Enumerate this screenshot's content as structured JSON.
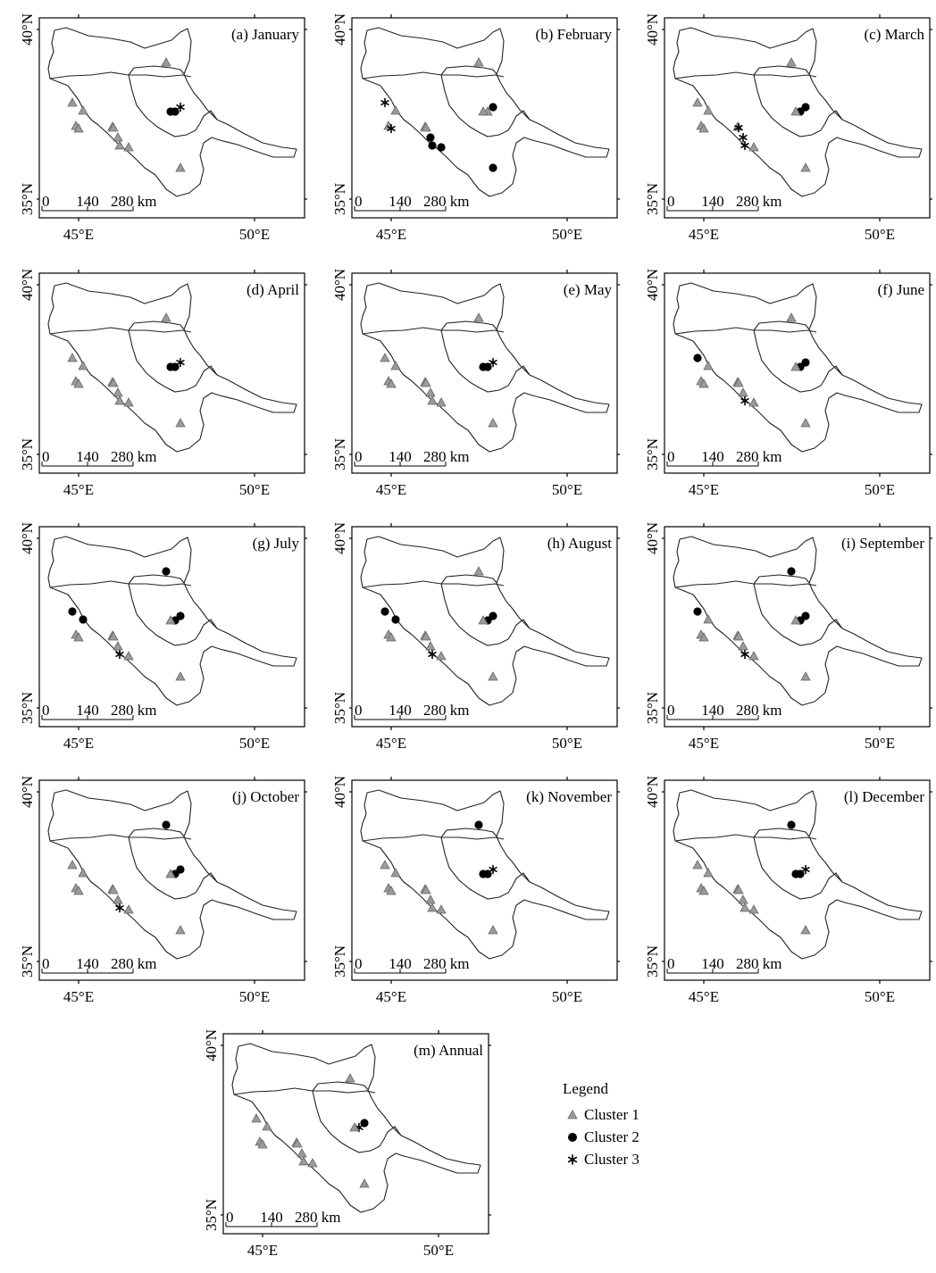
{
  "axis_labels": {
    "lat_top": "40°N",
    "lat_bottom": "35°N",
    "lon_left": "45°E",
    "lon_right": "50°E"
  },
  "scale_bar": {
    "labels": [
      "0",
      "140",
      "280 km"
    ]
  },
  "legend": {
    "title": "Legend",
    "items": [
      {
        "key": "c1",
        "label": "Cluster 1",
        "symbol": "triangle",
        "color": "#9b9b9b"
      },
      {
        "key": "c2",
        "label": "Cluster 2",
        "symbol": "dot",
        "color": "#000000"
      },
      {
        "key": "c3",
        "label": "Cluster 3",
        "symbol": "asterisk",
        "color": "#000000"
      }
    ]
  },
  "panels": [
    {
      "title": "(a) January",
      "clusters": [
        1,
        1,
        1,
        1,
        1,
        1,
        1,
        1,
        1,
        1,
        2,
        3,
        2,
        1
      ]
    },
    {
      "title": "(b) February",
      "clusters": [
        3,
        1,
        1,
        3,
        1,
        1,
        2,
        2,
        2,
        1,
        1,
        2,
        1,
        2
      ]
    },
    {
      "title": "(c) March",
      "clusters": [
        1,
        1,
        1,
        1,
        1,
        3,
        3,
        3,
        1,
        1,
        2,
        2,
        1,
        1
      ]
    },
    {
      "title": "(d) April",
      "clusters": [
        1,
        1,
        1,
        1,
        1,
        1,
        1,
        1,
        1,
        1,
        2,
        3,
        2,
        1
      ]
    },
    {
      "title": "(e) May",
      "clusters": [
        1,
        1,
        1,
        1,
        1,
        1,
        1,
        1,
        1,
        1,
        2,
        3,
        2,
        1
      ]
    },
    {
      "title": "(f) June",
      "clusters": [
        2,
        1,
        1,
        1,
        1,
        1,
        1,
        3,
        1,
        1,
        2,
        2,
        1,
        1
      ]
    },
    {
      "title": "(g) July",
      "clusters": [
        2,
        2,
        1,
        1,
        1,
        1,
        1,
        3,
        1,
        2,
        2,
        2,
        1,
        1
      ]
    },
    {
      "title": "(h) August",
      "clusters": [
        2,
        2,
        1,
        1,
        1,
        1,
        1,
        3,
        1,
        1,
        2,
        2,
        1,
        1
      ]
    },
    {
      "title": "(i) September",
      "clusters": [
        2,
        1,
        1,
        1,
        1,
        1,
        1,
        3,
        1,
        2,
        2,
        2,
        1,
        1
      ]
    },
    {
      "title": "(j) October",
      "clusters": [
        1,
        1,
        1,
        1,
        1,
        1,
        1,
        3,
        1,
        2,
        2,
        2,
        1,
        1
      ]
    },
    {
      "title": "(k) November",
      "clusters": [
        1,
        1,
        1,
        1,
        1,
        1,
        1,
        1,
        1,
        2,
        2,
        3,
        2,
        1
      ]
    },
    {
      "title": "(l) December",
      "clusters": [
        1,
        1,
        1,
        1,
        1,
        1,
        1,
        1,
        1,
        2,
        2,
        3,
        2,
        1
      ]
    },
    {
      "title": "(m) Annual",
      "clusters": [
        1,
        1,
        1,
        1,
        1,
        1,
        1,
        1,
        1,
        1,
        3,
        2,
        1,
        1
      ]
    }
  ],
  "colors": {
    "cluster1_fill": "#9b9b9b",
    "cluster2_fill": "#000000",
    "cluster3_fill": "#000000",
    "border": "#222222"
  }
}
